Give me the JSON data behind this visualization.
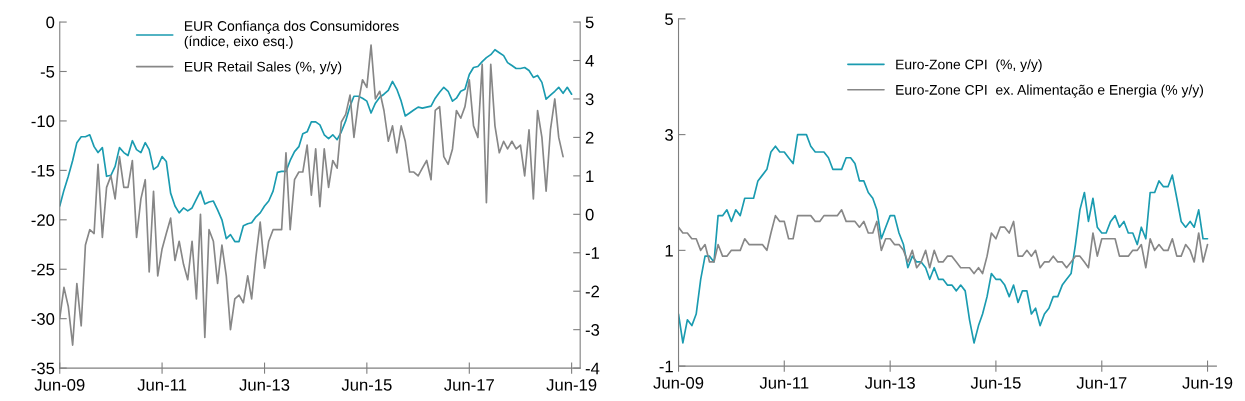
{
  "chart_data": [
    {
      "type": "line",
      "legend": "top",
      "grid": false,
      "marker": "none",
      "line_style": "solid",
      "x": [
        "2009-06",
        "2009-07",
        "2009-08",
        "2009-09",
        "2009-10",
        "2009-11",
        "2009-12",
        "2010-01",
        "2010-02",
        "2010-03",
        "2010-04",
        "2010-05",
        "2010-06",
        "2010-07",
        "2010-08",
        "2010-09",
        "2010-10",
        "2010-11",
        "2010-12",
        "2011-01",
        "2011-02",
        "2011-03",
        "2011-04",
        "2011-05",
        "2011-06",
        "2011-07",
        "2011-08",
        "2011-09",
        "2011-10",
        "2011-11",
        "2011-12",
        "2012-01",
        "2012-02",
        "2012-03",
        "2012-04",
        "2012-05",
        "2012-06",
        "2012-07",
        "2012-08",
        "2012-09",
        "2012-10",
        "2012-11",
        "2012-12",
        "2013-01",
        "2013-02",
        "2013-03",
        "2013-04",
        "2013-05",
        "2013-06",
        "2013-07",
        "2013-08",
        "2013-09",
        "2013-10",
        "2013-11",
        "2013-12",
        "2014-01",
        "2014-02",
        "2014-03",
        "2014-04",
        "2014-05",
        "2014-06",
        "2014-07",
        "2014-08",
        "2014-09",
        "2014-10",
        "2014-11",
        "2014-12",
        "2015-01",
        "2015-02",
        "2015-03",
        "2015-04",
        "2015-05",
        "2015-06",
        "2015-07",
        "2015-08",
        "2015-09",
        "2015-10",
        "2015-11",
        "2015-12",
        "2016-01",
        "2016-02",
        "2016-03",
        "2016-04",
        "2016-05",
        "2016-06",
        "2016-07",
        "2016-08",
        "2016-09",
        "2016-10",
        "2016-11",
        "2016-12",
        "2017-01",
        "2017-02",
        "2017-03",
        "2017-04",
        "2017-05",
        "2017-06",
        "2017-07",
        "2017-08",
        "2017-09",
        "2017-10",
        "2017-11",
        "2017-12",
        "2018-01",
        "2018-02",
        "2018-03",
        "2018-04",
        "2018-05",
        "2018-06",
        "2018-07",
        "2018-08",
        "2018-09",
        "2018-10",
        "2018-11",
        "2018-12",
        "2019-01",
        "2019-02",
        "2019-03",
        "2019-04",
        "2019-05",
        "2019-06"
      ],
      "xlim": [
        "2009-06",
        "2019-08"
      ],
      "xticks": [
        {
          "value": "2009-06",
          "label": "Jun-09"
        },
        {
          "value": "2011-06",
          "label": "Jun-11"
        },
        {
          "value": "2013-06",
          "label": "Jun-13"
        },
        {
          "value": "2015-06",
          "label": "Jun-15"
        },
        {
          "value": "2017-06",
          "label": "Jun-17"
        },
        {
          "value": "2019-06",
          "label": "Jun-19"
        }
      ],
      "ylim": [
        -35,
        0
      ],
      "yticks": [
        -35,
        -30,
        -25,
        -20,
        -15,
        -10,
        -5,
        0
      ],
      "y2lim": [
        -4,
        5
      ],
      "y2ticks": [
        -4,
        -3,
        -2,
        -1,
        0,
        1,
        2,
        3,
        4,
        5
      ],
      "series": [
        {
          "name": "EUR Confiança dos Consumidores\n(índice, eixo esq.)",
          "color": "#1a9bb0",
          "values": [
            -18.6,
            -17.0,
            -15.6,
            -14.0,
            -12.2,
            -11.6,
            -11.6,
            -11.4,
            -12.6,
            -13.2,
            -12.7,
            -15.6,
            -15.5,
            -14.6,
            -12.7,
            -13.2,
            -13.5,
            -12.0,
            -12.9,
            -13.2,
            -12.2,
            -12.9,
            -14.9,
            -14.6,
            -13.6,
            -14.1,
            -17.3,
            -18.6,
            -19.3,
            -18.8,
            -19.1,
            -18.8,
            -17.9,
            -17.1,
            -18.4,
            -18.2,
            -18.1,
            -19.0,
            -20.0,
            -21.9,
            -21.5,
            -22.2,
            -22.2,
            -20.6,
            -20.4,
            -20.3,
            -19.7,
            -19.3,
            -18.6,
            -18.1,
            -17.1,
            -15.2,
            -15.1,
            -15.1,
            -14.0,
            -13.1,
            -12.6,
            -11.3,
            -11.1,
            -10.1,
            -10.1,
            -10.4,
            -11.4,
            -11.8,
            -11.4,
            -11.9,
            -11.1,
            -10.0,
            -8.5,
            -7.5,
            -7.5,
            -7.7,
            -8.0,
            -9.2,
            -8.2,
            -7.6,
            -7.3,
            -6.9,
            -6.0,
            -6.8,
            -8.0,
            -9.5,
            -9.2,
            -8.9,
            -8.6,
            -8.7,
            -8.6,
            -8.5,
            -7.7,
            -7.1,
            -6.6,
            -7.0,
            -8.0,
            -7.7,
            -7.0,
            -6.8,
            -5.3,
            -4.6,
            -4.5,
            -4.0,
            -3.6,
            -3.3,
            -2.8,
            -3.1,
            -3.4,
            -4.1,
            -4.4,
            -4.7,
            -4.7,
            -4.6,
            -4.9,
            -5.6,
            -5.4,
            -6.1,
            -7.8,
            -7.4,
            -7.0,
            -6.6,
            -7.2,
            -6.6,
            -7.3
          ]
        },
        {
          "name": "EUR Retail Sales (%, y/y)",
          "color": "#878787",
          "axis": "y2",
          "values": [
            -2.7,
            -1.9,
            -2.4,
            -3.4,
            -1.8,
            -2.9,
            -0.8,
            -0.4,
            -0.5,
            1.3,
            -0.6,
            0.7,
            1.0,
            0.4,
            1.5,
            0.7,
            0.7,
            1.4,
            -0.6,
            0.4,
            0.9,
            -1.5,
            0.6,
            -1.6,
            -0.9,
            -0.5,
            -0.1,
            -1.2,
            -0.7,
            -1.3,
            -1.7,
            -0.7,
            -2.2,
            0.0,
            -3.2,
            -0.4,
            -0.7,
            -1.8,
            -0.8,
            -1.6,
            -3.0,
            -2.2,
            -2.1,
            -2.3,
            -1.6,
            -2.2,
            -1.1,
            -0.2,
            -1.4,
            -0.7,
            -0.4,
            -0.4,
            -0.4,
            1.6,
            -0.4,
            0.9,
            1.1,
            1.1,
            1.8,
            0.5,
            1.7,
            0.2,
            1.7,
            0.7,
            1.4,
            1.2,
            2.4,
            2.6,
            3.1,
            2.0,
            2.9,
            3.5,
            3.3,
            4.4,
            3.0,
            3.2,
            2.7,
            1.9,
            2.3,
            1.6,
            2.3,
            1.9,
            1.1,
            1.1,
            1.0,
            1.2,
            1.4,
            0.9,
            2.7,
            2.8,
            1.5,
            1.3,
            1.7,
            2.7,
            2.5,
            2.8,
            3.5,
            2.3,
            2.0,
            3.9,
            0.3,
            3.9,
            2.3,
            1.6,
            1.9,
            1.7,
            1.9,
            1.7,
            1.8,
            1.0,
            2.2,
            0.4,
            2.7,
            2.0,
            0.6,
            2.2,
            3.0,
            2.0,
            1.5,
            null,
            null
          ]
        }
      ]
    },
    {
      "type": "line",
      "legend": "top right",
      "grid": false,
      "marker": "none",
      "line_style": "solid",
      "x": [
        "2009-06",
        "2009-07",
        "2009-08",
        "2009-09",
        "2009-10",
        "2009-11",
        "2009-12",
        "2010-01",
        "2010-02",
        "2010-03",
        "2010-04",
        "2010-05",
        "2010-06",
        "2010-07",
        "2010-08",
        "2010-09",
        "2010-10",
        "2010-11",
        "2010-12",
        "2011-01",
        "2011-02",
        "2011-03",
        "2011-04",
        "2011-05",
        "2011-06",
        "2011-07",
        "2011-08",
        "2011-09",
        "2011-10",
        "2011-11",
        "2011-12",
        "2012-01",
        "2012-02",
        "2012-03",
        "2012-04",
        "2012-05",
        "2012-06",
        "2012-07",
        "2012-08",
        "2012-09",
        "2012-10",
        "2012-11",
        "2012-12",
        "2013-01",
        "2013-02",
        "2013-03",
        "2013-04",
        "2013-05",
        "2013-06",
        "2013-07",
        "2013-08",
        "2013-09",
        "2013-10",
        "2013-11",
        "2013-12",
        "2014-01",
        "2014-02",
        "2014-03",
        "2014-04",
        "2014-05",
        "2014-06",
        "2014-07",
        "2014-08",
        "2014-09",
        "2014-10",
        "2014-11",
        "2014-12",
        "2015-01",
        "2015-02",
        "2015-03",
        "2015-04",
        "2015-05",
        "2015-06",
        "2015-07",
        "2015-08",
        "2015-09",
        "2015-10",
        "2015-11",
        "2015-12",
        "2016-01",
        "2016-02",
        "2016-03",
        "2016-04",
        "2016-05",
        "2016-06",
        "2016-07",
        "2016-08",
        "2016-09",
        "2016-10",
        "2016-11",
        "2016-12",
        "2017-01",
        "2017-02",
        "2017-03",
        "2017-04",
        "2017-05",
        "2017-06",
        "2017-07",
        "2017-08",
        "2017-09",
        "2017-10",
        "2017-11",
        "2017-12",
        "2018-01",
        "2018-02",
        "2018-03",
        "2018-04",
        "2018-05",
        "2018-06",
        "2018-07",
        "2018-08",
        "2018-09",
        "2018-10",
        "2018-11",
        "2018-12",
        "2019-01",
        "2019-02",
        "2019-03",
        "2019-04",
        "2019-05",
        "2019-06"
      ],
      "xlim": [
        "2009-06",
        "2019-08"
      ],
      "xticks": [
        {
          "value": "2009-06",
          "label": "Jun-09"
        },
        {
          "value": "2011-06",
          "label": "Jun-11"
        },
        {
          "value": "2013-06",
          "label": "Jun-13"
        },
        {
          "value": "2015-06",
          "label": "Jun-15"
        },
        {
          "value": "2017-06",
          "label": "Jun-17"
        },
        {
          "value": "2019-06",
          "label": "Jun-19"
        }
      ],
      "ylim": [
        -1,
        5
      ],
      "yticks": [
        -1,
        1,
        3,
        5
      ],
      "series": [
        {
          "name": "Euro-Zone CPI  (%, y/y)",
          "color": "#1a9bb0",
          "values": [
            -0.1,
            -0.6,
            -0.2,
            -0.3,
            -0.1,
            0.5,
            0.9,
            0.9,
            0.8,
            1.6,
            1.6,
            1.7,
            1.5,
            1.7,
            1.6,
            1.9,
            1.9,
            1.9,
            2.2,
            2.3,
            2.4,
            2.7,
            2.8,
            2.7,
            2.7,
            2.6,
            2.5,
            3.0,
            3.0,
            3.0,
            2.8,
            2.7,
            2.7,
            2.7,
            2.6,
            2.4,
            2.4,
            2.4,
            2.6,
            2.6,
            2.5,
            2.2,
            2.2,
            2.0,
            1.9,
            1.7,
            1.2,
            1.4,
            1.6,
            1.6,
            1.3,
            1.1,
            0.7,
            0.9,
            0.8,
            0.8,
            0.7,
            0.5,
            0.7,
            0.5,
            0.5,
            0.4,
            0.4,
            0.3,
            0.4,
            0.3,
            -0.2,
            -0.6,
            -0.3,
            -0.1,
            0.2,
            0.6,
            0.5,
            0.5,
            0.4,
            0.2,
            0.4,
            0.1,
            0.3,
            0.3,
            -0.1,
            0.0,
            -0.3,
            -0.1,
            0.0,
            0.2,
            0.2,
            0.4,
            0.5,
            0.6,
            1.1,
            1.7,
            2.0,
            1.5,
            1.9,
            1.4,
            1.3,
            1.3,
            1.5,
            1.6,
            1.4,
            1.5,
            1.3,
            1.3,
            1.1,
            1.4,
            1.2,
            2.0,
            2.0,
            2.2,
            2.1,
            2.1,
            2.3,
            1.9,
            1.5,
            1.4,
            1.5,
            1.4,
            1.7,
            1.2,
            1.2
          ]
        },
        {
          "name": "Euro-Zone CPI  ex. Alimentação e Energia (% y/y)",
          "color": "#878787",
          "values": [
            1.4,
            1.3,
            1.3,
            1.2,
            1.2,
            1.0,
            1.1,
            0.8,
            0.8,
            1.1,
            0.9,
            0.9,
            1.0,
            1.0,
            1.0,
            1.2,
            1.1,
            1.1,
            1.1,
            1.1,
            1.0,
            1.3,
            1.6,
            1.5,
            1.5,
            1.2,
            1.2,
            1.6,
            1.6,
            1.6,
            1.6,
            1.5,
            1.5,
            1.6,
            1.6,
            1.6,
            1.6,
            1.7,
            1.5,
            1.5,
            1.5,
            1.4,
            1.5,
            1.3,
            1.3,
            1.5,
            1.0,
            1.2,
            1.2,
            1.1,
            1.1,
            1.0,
            0.8,
            1.0,
            0.7,
            0.8,
            1.0,
            0.7,
            1.0,
            0.8,
            0.8,
            0.9,
            0.9,
            0.8,
            0.7,
            0.7,
            0.7,
            0.6,
            0.7,
            0.6,
            0.9,
            1.3,
            1.2,
            1.4,
            1.4,
            1.3,
            1.5,
            0.9,
            0.9,
            1.0,
            0.9,
            1.0,
            0.7,
            0.8,
            0.8,
            0.9,
            0.8,
            0.8,
            0.7,
            0.8,
            0.9,
            0.9,
            0.8,
            0.7,
            1.3,
            0.9,
            1.2,
            1.2,
            1.2,
            1.2,
            0.9,
            0.9,
            0.9,
            1.0,
            1.0,
            1.1,
            0.7,
            1.2,
            1.0,
            1.1,
            1.0,
            1.0,
            1.2,
            0.9,
            0.9,
            1.1,
            1.0,
            0.8,
            1.3,
            0.8,
            1.1
          ]
        }
      ]
    }
  ]
}
